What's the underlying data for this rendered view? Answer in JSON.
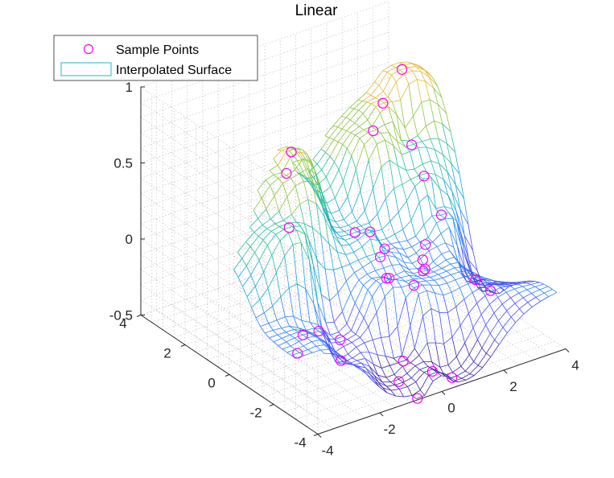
{
  "chart_data": {
    "type": "surface3d",
    "title": "Linear",
    "xlabel": "",
    "ylabel": "",
    "zlabel": "",
    "xlim": [
      -4,
      4
    ],
    "ylim": [
      -4,
      4
    ],
    "zlim": [
      -0.5,
      1
    ],
    "x_ticks": [
      "-4",
      "-2",
      "0",
      "2",
      "4"
    ],
    "y_ticks": [
      "-4",
      "-2",
      "0",
      "2",
      "4"
    ],
    "z_ticks": [
      "-0.5",
      "0",
      "0.5",
      "1"
    ],
    "grid": true,
    "legend_position": "top-left",
    "colormap": [
      "#3e26a8",
      "#4850f6",
      "#2f84f6",
      "#1fa9d8",
      "#2cc0a0",
      "#8cc63f",
      "#e5bb33",
      "#f9e91e"
    ],
    "series": [
      {
        "name": "Sample Points",
        "marker": "circle",
        "color": "#ff00ff",
        "points": [
          {
            "x": -3.8,
            "y": -2.8,
            "z": -0.1
          },
          {
            "x": -3.2,
            "y": -2.2,
            "z": -0.08
          },
          {
            "x": -2.5,
            "y": -0.6,
            "z": 0.42
          },
          {
            "x": -2.4,
            "y": -1.8,
            "z": -0.15
          },
          {
            "x": -1.8,
            "y": 0.5,
            "z": 0.62
          },
          {
            "x": -1.5,
            "y": 0.7,
            "z": 0.72
          },
          {
            "x": -1.5,
            "y": -1.5,
            "z": -0.3
          },
          {
            "x": -1.9,
            "y": -2.1,
            "z": -0.35
          },
          {
            "x": 0.0,
            "y": -1.5,
            "z": 0.0
          },
          {
            "x": 0.3,
            "y": -0.8,
            "z": 0.05
          },
          {
            "x": 0.8,
            "y": -0.3,
            "z": 0.02
          },
          {
            "x": 1.5,
            "y": 1.2,
            "z": 0.6
          },
          {
            "x": 2.1,
            "y": 1.6,
            "z": 0.7
          },
          {
            "x": 3.0,
            "y": 2.0,
            "z": 0.82
          },
          {
            "x": 2.6,
            "y": 1.0,
            "z": 0.45
          },
          {
            "x": 2.5,
            "y": 0.3,
            "z": 0.32
          },
          {
            "x": 2.7,
            "y": -0.2,
            "z": 0.1
          },
          {
            "x": 1.9,
            "y": -0.6,
            "z": 0.0
          },
          {
            "x": 1.6,
            "y": -0.9,
            "z": -0.05
          },
          {
            "x": 1.4,
            "y": -1.2,
            "z": -0.08
          },
          {
            "x": 1.6,
            "y": -1.0,
            "z": -0.1
          },
          {
            "x": 0.3,
            "y": -1.2,
            "z": -0.05
          },
          {
            "x": 0.6,
            "y": -1.9,
            "z": -0.05
          },
          {
            "x": -0.1,
            "y": -2.4,
            "z": -0.45
          },
          {
            "x": -0.6,
            "y": -2.9,
            "z": -0.5
          },
          {
            "x": 0.2,
            "y": -3.3,
            "z": -0.45
          },
          {
            "x": 3.3,
            "y": -0.9,
            "z": -0.3
          },
          {
            "x": 4.0,
            "y": -0.6,
            "z": -0.45
          },
          {
            "x": -0.5,
            "y": -3.6,
            "z": -0.55
          },
          {
            "x": 0.9,
            "y": -3.2,
            "z": -0.55
          },
          {
            "x": 0.4,
            "y": -0.2,
            "z": 0.15
          },
          {
            "x": 0.2,
            "y": 0.2,
            "z": 0.12
          }
        ]
      },
      {
        "name": "Interpolated Surface",
        "style": "mesh",
        "color": "#46c0d8"
      }
    ]
  }
}
